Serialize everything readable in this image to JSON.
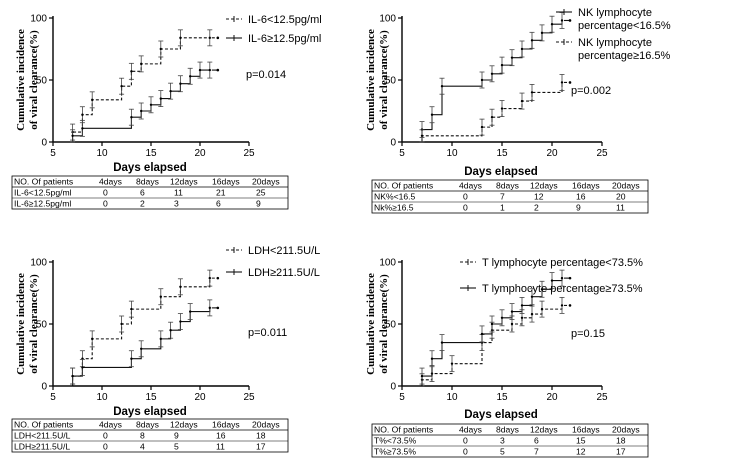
{
  "chart_data": [
    {
      "type": "line",
      "subtype": "kaplan-meier-cumulative-incidence",
      "ylabel_lines": [
        "Cumulative incidence",
        "of viral clearance(%)"
      ],
      "xlabel": "Days elapsed",
      "xlim": [
        5,
        25
      ],
      "ylim": [
        0,
        100
      ],
      "xticks": [
        5,
        10,
        15,
        20,
        25
      ],
      "yticks": [
        0,
        50,
        100
      ],
      "p_value": "p=0.014",
      "legend_position": "top-right",
      "series": [
        {
          "name": "IL-6<12.5pg/ml",
          "legend_lines": [
            "IL-6<12.5pg/ml"
          ],
          "style": "dashed",
          "x": [
            5,
            7,
            8,
            9,
            12,
            13,
            14,
            16,
            18,
            21
          ],
          "y": [
            0,
            8,
            22,
            34,
            45,
            57,
            63,
            75,
            84,
            84
          ]
        },
        {
          "name": "IL-6≥12.5pg/ml",
          "legend_lines": [
            "IL-6≥12.5pg/ml"
          ],
          "style": "solid",
          "x": [
            5,
            7,
            8,
            13,
            14,
            15,
            16,
            17,
            18,
            19,
            20,
            21
          ],
          "y": [
            0,
            5,
            11,
            20,
            25,
            30,
            35,
            41,
            47,
            53,
            58,
            58
          ]
        }
      ],
      "table": {
        "header": [
          "NO. Of patients",
          "4days",
          "8days",
          "12days",
          "16days",
          "20days"
        ],
        "rows": [
          [
            "IL-6<12.5pg/ml",
            "0",
            "6",
            "11",
            "21",
            "25"
          ],
          [
            "IL-6≥12.5pg/ml",
            "0",
            "2",
            "3",
            "6",
            "9"
          ]
        ]
      }
    },
    {
      "type": "line",
      "subtype": "kaplan-meier-cumulative-incidence",
      "ylabel_lines": [
        "Cumulative incidence",
        "of viral clearance(%)"
      ],
      "xlabel": "Days elapsed",
      "xlim": [
        5,
        25
      ],
      "ylim": [
        0,
        100
      ],
      "xticks": [
        5,
        10,
        15,
        20,
        25
      ],
      "yticks": [
        0,
        50,
        100
      ],
      "p_value": "p=0.002",
      "legend_position": "top-right",
      "series": [
        {
          "name": "NK lymphocyte percentage<16.5%",
          "legend_lines": [
            "NK lymphocyte",
            " percentage<16.5%"
          ],
          "style": "solid",
          "x": [
            5,
            7,
            8,
            9,
            13,
            14,
            15,
            16,
            17,
            18,
            19,
            20,
            21
          ],
          "y": [
            0,
            10,
            22,
            45,
            50,
            55,
            62,
            68,
            75,
            82,
            88,
            95,
            98
          ]
        },
        {
          "name": "NK lymphocyte percentage≥16.5%",
          "legend_lines": [
            "NK lymphocyte",
            "percentage≥16.5%"
          ],
          "style": "dashed",
          "x": [
            5,
            7,
            13,
            14,
            15,
            17,
            18,
            21
          ],
          "y": [
            0,
            5,
            12,
            20,
            27,
            33,
            40,
            48
          ]
        }
      ],
      "table": {
        "header": [
          "NO. Of patients",
          "4days",
          "8days",
          "12days",
          "16days",
          "20days"
        ],
        "rows": [
          [
            "NK%<16.5",
            "0",
            "7",
            "12",
            "16",
            "20"
          ],
          [
            "Nk%≥16.5",
            "0",
            "1",
            "2",
            "9",
            "11"
          ]
        ]
      }
    },
    {
      "type": "line",
      "subtype": "kaplan-meier-cumulative-incidence",
      "ylabel_lines": [
        "Cumulative incidence",
        "of viral clearance(%)"
      ],
      "xlabel": "Days elapsed",
      "xlim": [
        5,
        25
      ],
      "ylim": [
        0,
        100
      ],
      "xticks": [
        5,
        10,
        15,
        20,
        25
      ],
      "yticks": [
        0,
        50,
        100
      ],
      "p_value": "p=0.011",
      "legend_position": "top-right",
      "series": [
        {
          "name": "LDH<211.5U/L",
          "legend_lines": [
            "LDH<211.5U/L"
          ],
          "style": "dashed",
          "x": [
            5,
            7,
            8,
            9,
            12,
            13,
            16,
            18,
            21
          ],
          "y": [
            0,
            8,
            22,
            38,
            50,
            62,
            72,
            80,
            87
          ]
        },
        {
          "name": "LDH≥211.5U/L",
          "legend_lines": [
            "LDH≥211.5U/L"
          ],
          "style": "solid",
          "x": [
            5,
            7,
            8,
            13,
            14,
            16,
            17,
            18,
            19,
            21
          ],
          "y": [
            0,
            8,
            15,
            22,
            30,
            38,
            45,
            52,
            60,
            63
          ]
        }
      ],
      "table": {
        "header": [
          "NO. Of patients",
          "4days",
          "8days",
          "12days",
          "16days",
          "20days"
        ],
        "rows": [
          [
            "LDH<211.5U/L",
            "0",
            "8",
            "9",
            "16",
            "18"
          ],
          [
            "LDH≥211.5U/L",
            "0",
            "4",
            "5",
            "11",
            "17"
          ]
        ]
      }
    },
    {
      "type": "line",
      "subtype": "kaplan-meier-cumulative-incidence",
      "ylabel_lines": [
        "Cumulative incidence",
        "of viral clearance(%)"
      ],
      "xlabel": "Days elapsed",
      "xlim": [
        5,
        25
      ],
      "ylim": [
        0,
        100
      ],
      "xticks": [
        5,
        10,
        15,
        20,
        25
      ],
      "yticks": [
        0,
        50,
        100
      ],
      "p_value": "p=0.15",
      "legend_position": "top-right",
      "series": [
        {
          "name": "T lymphocyte percentage<73.5%",
          "legend_lines": [
            "T lymphocyte percentage<73.5%"
          ],
          "style": "dashed",
          "x": [
            5,
            7,
            8,
            10,
            13,
            14,
            16,
            17,
            18,
            19,
            21
          ],
          "y": [
            0,
            5,
            10,
            18,
            35,
            45,
            50,
            55,
            58,
            62,
            65
          ]
        },
        {
          "name": "T lymphocyte percentage≥73.5%",
          "legend_lines": [
            "T lymphocyte percentage≥73.5%"
          ],
          "style": "solid",
          "x": [
            5,
            7,
            8,
            9,
            13,
            14,
            15,
            16,
            17,
            18,
            19,
            20,
            21
          ],
          "y": [
            0,
            8,
            22,
            35,
            42,
            50,
            55,
            60,
            65,
            72,
            78,
            85,
            87
          ]
        }
      ],
      "table": {
        "header": [
          "NO. Of patients",
          "4days",
          "8days",
          "12days",
          "16days",
          "20days"
        ],
        "rows": [
          [
            "T%<73.5%",
            "0",
            "3",
            "6",
            "15",
            "18"
          ],
          [
            "T%≥73.5%",
            "0",
            "5",
            "7",
            "12",
            "17"
          ]
        ]
      }
    }
  ]
}
